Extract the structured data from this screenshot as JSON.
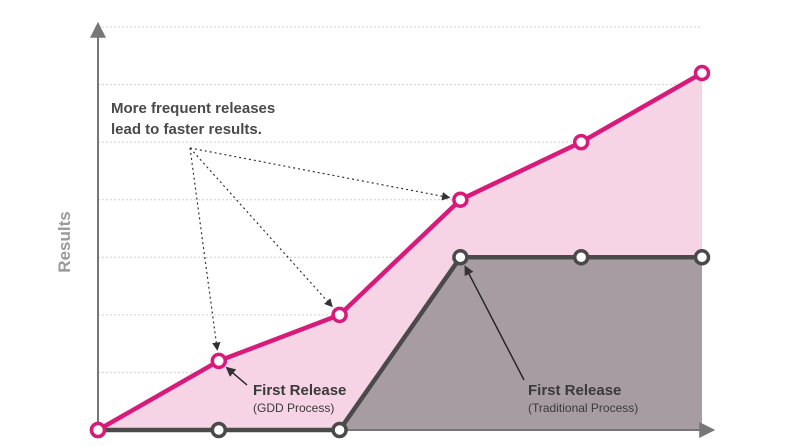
{
  "chart_data": {
    "type": "area",
    "ylabel": "Results",
    "xlabel": "",
    "title": "",
    "x": [
      0,
      1,
      2,
      3,
      4,
      5
    ],
    "ylim": [
      0,
      7
    ],
    "grid": true,
    "series": [
      {
        "key": "gdd",
        "values": [
          0,
          1.2,
          2.0,
          4.0,
          5.0,
          6.2
        ],
        "color": "#d81b7a",
        "fill": "#f6d3e5"
      },
      {
        "key": "traditional",
        "values": [
          0,
          0,
          0,
          3.0,
          3.0,
          3.0
        ],
        "color": "#4a4a4a",
        "fill": "#a79ca2"
      }
    ],
    "callout": {
      "lines": [
        "More frequent releases",
        "lead to faster results."
      ],
      "targets": [
        1,
        2,
        3
      ]
    },
    "annotations": [
      {
        "title": "First Release",
        "subtitle": "(GDD Process)",
        "series": "gdd",
        "point": 1
      },
      {
        "title": "First Release",
        "subtitle": "(Traditional Process)",
        "series": "traditional",
        "point": 3
      }
    ]
  }
}
